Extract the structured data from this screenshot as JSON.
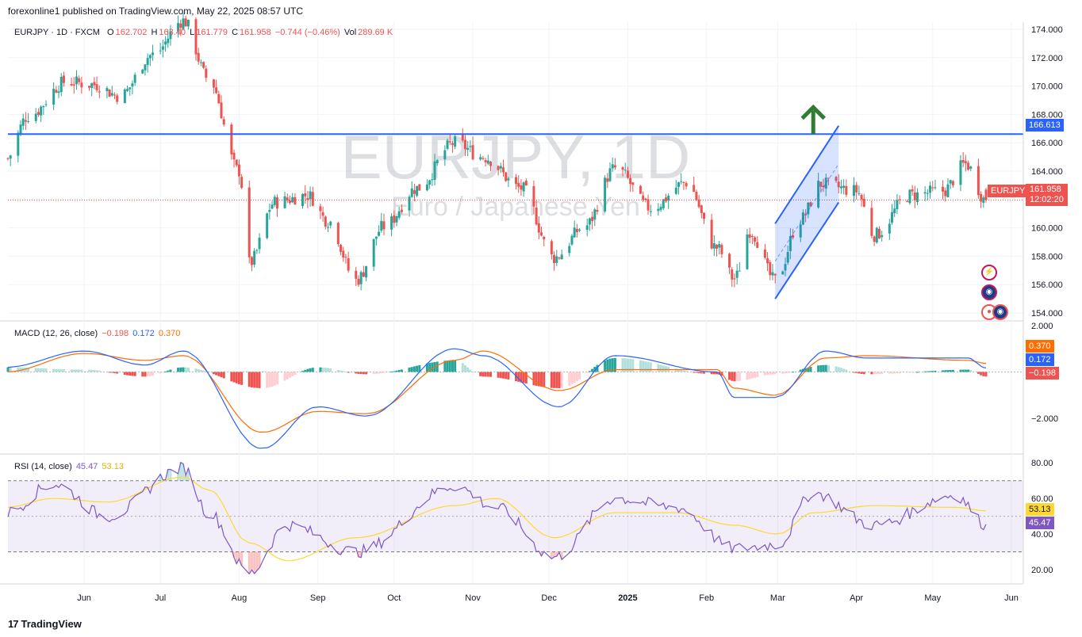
{
  "header": {
    "publisher_line": "forexonline1 published on TradingView.com, May 22, 2025 08:57 UTC"
  },
  "legend": {
    "symbol": "EURJPY · 1D · FXCM",
    "open_label": "O",
    "open": "162.702",
    "high_label": "H",
    "high": "163.40",
    "low_label": "L",
    "low": "161.779",
    "close_label": "C",
    "close": "161.958",
    "change": "−0.744 (−0.46%)",
    "vol_label": "Vol",
    "vol": "289.69 K"
  },
  "watermark": {
    "symbol": "EURJPY, 1D",
    "description": "Euro / Japanese Yen"
  },
  "price_scale": [
    "174.000",
    "172.000",
    "170.000",
    "168.000",
    "166.000",
    "164.000",
    "162.000",
    "160.000",
    "158.000",
    "156.000",
    "154.000"
  ],
  "level_tag": "166.613",
  "last_price": {
    "symbol": "EURJPY",
    "price": "161.958",
    "countdown": "12:02:20"
  },
  "macd": {
    "title": "MACD (12, 26, close)",
    "hist": "−0.198",
    "macd": "0.172",
    "signal": "0.370",
    "scale": [
      "2.000",
      "−2.000"
    ],
    "tag_signal": "0.370",
    "tag_macd": "0.172",
    "tag_hist": "−0.198"
  },
  "rsi": {
    "title": "RSI (14, close)",
    "value": "45.47",
    "ma": "53.13",
    "scale": [
      "80.00",
      "60.00",
      "40.00",
      "20.00"
    ],
    "tag_ma": "53.13",
    "tag_value": "45.47"
  },
  "time_axis": [
    "Jun",
    "Jul",
    "Aug",
    "Sep",
    "Oct",
    "Nov",
    "Dec",
    "2025",
    "Feb",
    "Mar",
    "Apr",
    "May",
    "Jun"
  ],
  "footer": {
    "brand": "TradingView",
    "mark": "17"
  },
  "colors": {
    "up": "#26a69a",
    "down": "#ef5350",
    "level_line": "#2962ff",
    "channel": "#2962ff",
    "arrow": "#2e7d32",
    "macd_line": "#2962ff",
    "signal_line": "#ff6d00",
    "rsi_line": "#7e57c2",
    "rsi_ma": "#fdd835"
  },
  "chart_data": {
    "type": "candlestick",
    "symbol": "EURJPY",
    "timeframe": "1D",
    "price_range": [
      153.5,
      174.5
    ],
    "horizontal_level": 166.613,
    "last_close": 161.958,
    "price_path_anchors": [
      {
        "date": "2024-05-01",
        "close": 164.8
      },
      {
        "date": "2024-05-10",
        "close": 167.9
      },
      {
        "date": "2024-05-25",
        "close": 170.3
      },
      {
        "date": "2024-06-05",
        "close": 170.1
      },
      {
        "date": "2024-06-15",
        "close": 169.3
      },
      {
        "date": "2024-06-28",
        "close": 172.2
      },
      {
        "date": "2024-07-10",
        "close": 174.6
      },
      {
        "date": "2024-07-20",
        "close": 170.5
      },
      {
        "date": "2024-08-01",
        "close": 164.0
      },
      {
        "date": "2024-08-05",
        "close": 157.5
      },
      {
        "date": "2024-08-15",
        "close": 161.8
      },
      {
        "date": "2024-08-28",
        "close": 162.3
      },
      {
        "date": "2024-09-05",
        "close": 160.5
      },
      {
        "date": "2024-09-16",
        "close": 156.3
      },
      {
        "date": "2024-09-27",
        "close": 160.1
      },
      {
        "date": "2024-10-10",
        "close": 162.8
      },
      {
        "date": "2024-10-25",
        "close": 166.0
      },
      {
        "date": "2024-11-05",
        "close": 165.0
      },
      {
        "date": "2024-11-20",
        "close": 162.8
      },
      {
        "date": "2024-12-03",
        "close": 157.9
      },
      {
        "date": "2024-12-15",
        "close": 160.1
      },
      {
        "date": "2024-12-27",
        "close": 164.2
      },
      {
        "date": "2025-01-10",
        "close": 161.4
      },
      {
        "date": "2025-01-24",
        "close": 163.2
      },
      {
        "date": "2025-02-05",
        "close": 158.6
      },
      {
        "date": "2025-02-12",
        "close": 156.4
      },
      {
        "date": "2025-02-18",
        "close": 159.8
      },
      {
        "date": "2025-02-28",
        "close": 156.3
      },
      {
        "date": "2025-03-10",
        "close": 160.6
      },
      {
        "date": "2025-03-18",
        "close": 163.1
      },
      {
        "date": "2025-04-01",
        "close": 162.6
      },
      {
        "date": "2025-04-08",
        "close": 159.5
      },
      {
        "date": "2025-04-22",
        "close": 162.3
      },
      {
        "date": "2025-05-05",
        "close": 162.6
      },
      {
        "date": "2025-05-14",
        "close": 164.5
      },
      {
        "date": "2025-05-22",
        "close": 161.958
      }
    ],
    "macd_range": [
      -3.5,
      2.2
    ],
    "macd_anchors": [
      {
        "date": "2024-05-01",
        "macd": 0.2,
        "signal": 0.0
      },
      {
        "date": "2024-06-01",
        "macd": 0.9,
        "signal": 0.8
      },
      {
        "date": "2024-06-25",
        "macd": 0.3,
        "signal": 0.5
      },
      {
        "date": "2024-07-10",
        "macd": 0.9,
        "signal": 0.7
      },
      {
        "date": "2024-08-10",
        "macd": -3.3,
        "signal": -2.6
      },
      {
        "date": "2024-09-01",
        "macd": -1.5,
        "signal": -1.7
      },
      {
        "date": "2024-09-20",
        "macd": -1.9,
        "signal": -1.8
      },
      {
        "date": "2024-10-25",
        "macd": 1.0,
        "signal": 0.5
      },
      {
        "date": "2024-11-05",
        "macd": 0.7,
        "signal": 0.9
      },
      {
        "date": "2024-12-05",
        "macd": -1.5,
        "signal": -0.8
      },
      {
        "date": "2024-12-27",
        "macd": 0.7,
        "signal": 0.1
      },
      {
        "date": "2025-02-05",
        "macd": 0.0,
        "signal": 0.1
      },
      {
        "date": "2025-02-12",
        "macd": -1.1,
        "signal": -0.7
      },
      {
        "date": "2025-02-28",
        "macd": -1.1,
        "signal": -1.0
      },
      {
        "date": "2025-03-20",
        "macd": 0.9,
        "signal": 0.6
      },
      {
        "date": "2025-04-05",
        "macd": 0.6,
        "signal": 0.7
      },
      {
        "date": "2025-05-15",
        "macd": 0.6,
        "signal": 0.5
      },
      {
        "date": "2025-05-22",
        "macd": 0.172,
        "signal": 0.37
      }
    ],
    "rsi_range": [
      12,
      85
    ],
    "rsi_bands": [
      70,
      50,
      30
    ],
    "rsi_anchors": [
      {
        "date": "2024-05-01",
        "rsi": 52,
        "ma": 55
      },
      {
        "date": "2024-05-20",
        "rsi": 68,
        "ma": 60
      },
      {
        "date": "2024-06-10",
        "rsi": 50,
        "ma": 58
      },
      {
        "date": "2024-07-10",
        "rsi": 77,
        "ma": 72
      },
      {
        "date": "2024-07-20",
        "rsi": 52,
        "ma": 65
      },
      {
        "date": "2024-08-05",
        "rsi": 18,
        "ma": 35
      },
      {
        "date": "2024-08-20",
        "rsi": 45,
        "ma": 25
      },
      {
        "date": "2024-09-16",
        "rsi": 30,
        "ma": 38
      },
      {
        "date": "2024-10-25",
        "rsi": 67,
        "ma": 56
      },
      {
        "date": "2024-11-10",
        "rsi": 55,
        "ma": 60
      },
      {
        "date": "2024-12-03",
        "rsi": 27,
        "ma": 38
      },
      {
        "date": "2024-12-27",
        "rsi": 60,
        "ma": 52
      },
      {
        "date": "2025-01-20",
        "rsi": 55,
        "ma": 52
      },
      {
        "date": "2025-02-12",
        "rsi": 32,
        "ma": 45
      },
      {
        "date": "2025-03-01",
        "rsi": 34,
        "ma": 40
      },
      {
        "date": "2025-03-15",
        "rsi": 63,
        "ma": 52
      },
      {
        "date": "2025-04-08",
        "rsi": 45,
        "ma": 56
      },
      {
        "date": "2025-05-10",
        "rsi": 62,
        "ma": 55
      },
      {
        "date": "2025-05-22",
        "rsi": 45.47,
        "ma": 53.13
      }
    ],
    "channel": {
      "start_date": "2025-02-28",
      "end_date": "2025-03-25",
      "lower_start": 155.0,
      "upper_start": 160.3,
      "lower_end": 161.8,
      "upper_end": 167.2
    },
    "arrow": {
      "date": "2025-03-15",
      "price": 166.8,
      "direction": "up"
    }
  }
}
